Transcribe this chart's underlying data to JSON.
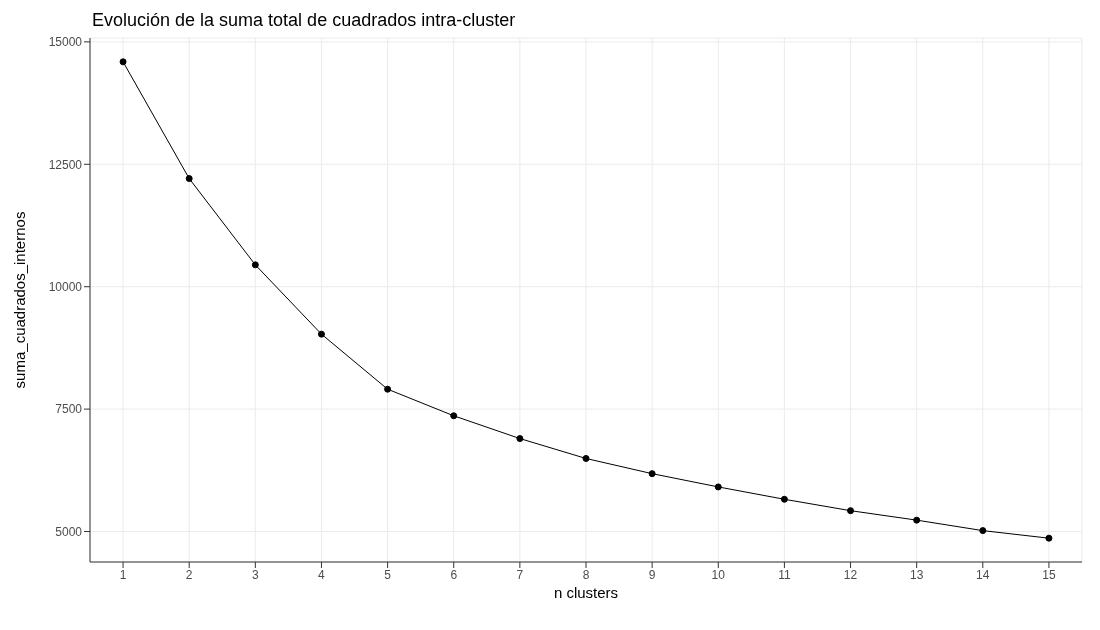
{
  "chart_data": {
    "type": "line",
    "title": "Evolución de la suma total de cuadrados intra-cluster",
    "xlabel": "n  clusters",
    "ylabel": "suma_cuadrados_internos",
    "x": [
      1,
      2,
      3,
      4,
      5,
      6,
      7,
      8,
      9,
      10,
      11,
      12,
      13,
      14,
      15
    ],
    "series": [
      {
        "color": "#000000",
        "values": [
          14593,
          12209,
          10446,
          9031,
          7907,
          7364,
          6899,
          6492,
          6182,
          5911,
          5659,
          5426,
          5233,
          5019,
          4864
        ]
      }
    ],
    "xlim": [
      0.5,
      15.5
    ],
    "xticks": [
      1,
      2,
      3,
      4,
      5,
      6,
      7,
      8,
      9,
      10,
      11,
      12,
      13,
      14,
      15
    ],
    "ylim": [
      4378,
      15079
    ],
    "yticks": [
      5000,
      7500,
      10000,
      12500,
      15000
    ],
    "grid": true,
    "marker": "circle",
    "line_style": "solid"
  }
}
